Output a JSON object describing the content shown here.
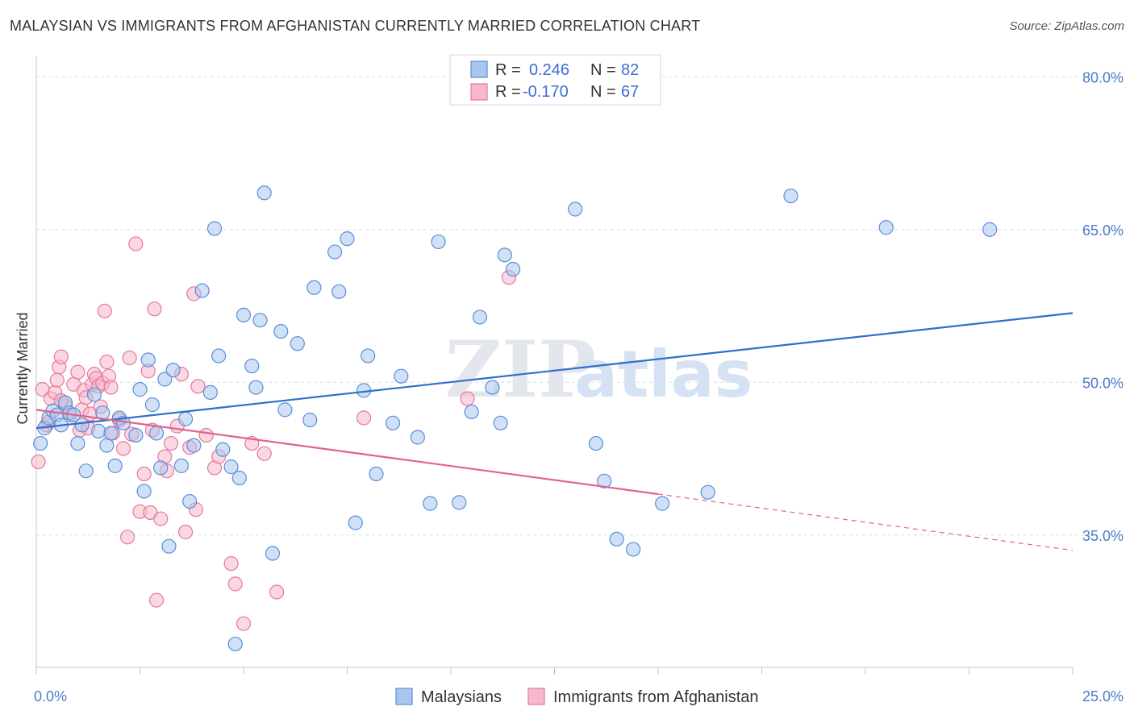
{
  "title": "MALAYSIAN VS IMMIGRANTS FROM AFGHANISTAN CURRENTLY MARRIED CORRELATION CHART",
  "source": "Source: ZipAtlas.com",
  "colors": {
    "blue_fill": "#a9c6ef",
    "blue_stroke": "#5b8ed8",
    "blue_line": "#2f6fcc",
    "pink_fill": "#f6b8cb",
    "pink_stroke": "#e8779c",
    "pink_line": "#e0628f",
    "grid": "#d8dde6",
    "tick_text": "#4a7cc9"
  },
  "chart_data": {
    "type": "scatter",
    "title": "MALAYSIAN VS IMMIGRANTS FROM AFGHANISTAN CURRENTLY MARRIED CORRELATION CHART",
    "xlabel": "",
    "ylabel": "Currently Married",
    "xlim": [
      0,
      25
    ],
    "ylim": [
      22,
      82
    ],
    "x_ticks": [
      "0.0%",
      "25.0%"
    ],
    "y_ticks": [
      {
        "value": 80,
        "label": "80.0%"
      },
      {
        "value": 65,
        "label": "65.0%"
      },
      {
        "value": 50,
        "label": "50.0%"
      },
      {
        "value": 35,
        "label": "35.0%"
      }
    ],
    "legend": [
      {
        "series": "Malaysians",
        "r_label": "R =",
        "r_value": "0.246",
        "n_label": "N =",
        "n_value": "82"
      },
      {
        "series": "Immigrants from Afghanistan",
        "r_label": "R =",
        "r_value": "-0.170",
        "n_label": "N =",
        "n_value": "67"
      }
    ],
    "watermark": {
      "zip": "ZIP",
      "atlas": "atlas"
    },
    "series": [
      {
        "name": "Malaysians",
        "color": "blue",
        "trend": {
          "x0": 0,
          "y0": 45.5,
          "x1": 25,
          "y1": 56.8,
          "dashed_from": null
        },
        "points": [
          [
            0.1,
            44.0
          ],
          [
            0.2,
            45.5
          ],
          [
            0.3,
            46.5
          ],
          [
            0.4,
            47.2
          ],
          [
            0.5,
            46.8
          ],
          [
            0.6,
            45.8
          ],
          [
            0.7,
            48.0
          ],
          [
            0.8,
            47.0
          ],
          [
            0.9,
            46.8
          ],
          [
            1.0,
            44.0
          ],
          [
            1.1,
            45.8
          ],
          [
            1.2,
            41.3
          ],
          [
            1.4,
            48.8
          ],
          [
            1.5,
            45.2
          ],
          [
            1.6,
            47.0
          ],
          [
            1.7,
            43.8
          ],
          [
            1.8,
            45.0
          ],
          [
            1.9,
            41.8
          ],
          [
            2.0,
            46.5
          ],
          [
            2.1,
            46.0
          ],
          [
            2.4,
            44.8
          ],
          [
            2.5,
            49.3
          ],
          [
            2.6,
            39.3
          ],
          [
            2.7,
            52.2
          ],
          [
            2.8,
            47.8
          ],
          [
            2.9,
            45.0
          ],
          [
            3.0,
            41.6
          ],
          [
            3.1,
            50.3
          ],
          [
            3.2,
            33.9
          ],
          [
            3.3,
            51.2
          ],
          [
            3.5,
            41.8
          ],
          [
            3.6,
            46.4
          ],
          [
            3.7,
            38.3
          ],
          [
            3.8,
            43.8
          ],
          [
            4.0,
            59.0
          ],
          [
            4.2,
            49.0
          ],
          [
            4.3,
            65.1
          ],
          [
            4.4,
            52.6
          ],
          [
            4.5,
            43.4
          ],
          [
            4.7,
            41.7
          ],
          [
            4.9,
            40.6
          ],
          [
            5.0,
            56.6
          ],
          [
            5.2,
            51.6
          ],
          [
            5.3,
            49.5
          ],
          [
            5.4,
            56.1
          ],
          [
            5.5,
            68.6
          ],
          [
            5.7,
            33.2
          ],
          [
            5.9,
            55.0
          ],
          [
            6.0,
            47.3
          ],
          [
            6.3,
            53.8
          ],
          [
            6.6,
            46.3
          ],
          [
            6.7,
            59.3
          ],
          [
            7.2,
            62.8
          ],
          [
            7.3,
            58.9
          ],
          [
            7.5,
            64.1
          ],
          [
            7.7,
            36.2
          ],
          [
            7.9,
            49.2
          ],
          [
            8.0,
            52.6
          ],
          [
            8.2,
            41.0
          ],
          [
            8.6,
            46.0
          ],
          [
            8.8,
            50.6
          ],
          [
            9.2,
            44.6
          ],
          [
            9.5,
            38.1
          ],
          [
            9.7,
            63.8
          ],
          [
            10.2,
            38.2
          ],
          [
            10.5,
            47.1
          ],
          [
            10.7,
            56.4
          ],
          [
            11.0,
            49.5
          ],
          [
            11.2,
            46.0
          ],
          [
            11.3,
            62.5
          ],
          [
            11.5,
            61.1
          ],
          [
            13.0,
            67.0
          ],
          [
            13.5,
            44.0
          ],
          [
            13.7,
            40.3
          ],
          [
            14.0,
            34.6
          ],
          [
            14.4,
            33.6
          ],
          [
            15.1,
            38.1
          ],
          [
            16.2,
            39.2
          ],
          [
            18.2,
            68.3
          ],
          [
            20.5,
            65.2
          ],
          [
            23.0,
            65.0
          ],
          [
            4.8,
            24.3
          ]
        ]
      },
      {
        "name": "Immigrants from Afghanistan",
        "color": "pink",
        "trend": {
          "x0": 0,
          "y0": 47.3,
          "x1": 25,
          "y1": 33.5,
          "dashed_from": 15.0
        },
        "points": [
          [
            0.05,
            42.2
          ],
          [
            0.15,
            49.3
          ],
          [
            0.25,
            45.8
          ],
          [
            0.35,
            48.4
          ],
          [
            0.45,
            49.0
          ],
          [
            0.5,
            50.2
          ],
          [
            0.55,
            51.5
          ],
          [
            0.6,
            52.5
          ],
          [
            0.7,
            47.7
          ],
          [
            0.8,
            46.8
          ],
          [
            0.9,
            49.8
          ],
          [
            1.0,
            51.0
          ],
          [
            1.05,
            45.3
          ],
          [
            1.1,
            47.3
          ],
          [
            1.15,
            49.2
          ],
          [
            1.2,
            48.5
          ],
          [
            1.25,
            45.5
          ],
          [
            1.35,
            49.8
          ],
          [
            1.4,
            50.8
          ],
          [
            1.45,
            50.4
          ],
          [
            1.5,
            49.6
          ],
          [
            1.55,
            47.6
          ],
          [
            1.6,
            49.9
          ],
          [
            1.65,
            57.0
          ],
          [
            1.7,
            52.0
          ],
          [
            1.75,
            50.6
          ],
          [
            1.8,
            49.5
          ],
          [
            1.85,
            45.0
          ],
          [
            2.0,
            46.3
          ],
          [
            2.1,
            43.5
          ],
          [
            2.2,
            34.8
          ],
          [
            2.25,
            52.4
          ],
          [
            2.4,
            63.6
          ],
          [
            2.5,
            37.3
          ],
          [
            2.6,
            41.0
          ],
          [
            2.7,
            51.1
          ],
          [
            2.75,
            37.2
          ],
          [
            2.8,
            45.3
          ],
          [
            2.85,
            57.2
          ],
          [
            2.9,
            28.6
          ],
          [
            3.0,
            36.6
          ],
          [
            3.1,
            42.7
          ],
          [
            3.15,
            41.3
          ],
          [
            3.25,
            44.0
          ],
          [
            3.4,
            45.7
          ],
          [
            3.5,
            50.8
          ],
          [
            3.6,
            35.3
          ],
          [
            3.7,
            43.6
          ],
          [
            3.8,
            58.7
          ],
          [
            3.85,
            37.5
          ],
          [
            3.9,
            49.6
          ],
          [
            4.1,
            44.8
          ],
          [
            4.3,
            41.6
          ],
          [
            4.4,
            42.7
          ],
          [
            4.7,
            32.2
          ],
          [
            4.8,
            30.2
          ],
          [
            5.0,
            26.3
          ],
          [
            5.2,
            44.0
          ],
          [
            5.5,
            43.0
          ],
          [
            5.8,
            29.4
          ],
          [
            7.9,
            46.5
          ],
          [
            10.4,
            48.4
          ],
          [
            11.4,
            60.3
          ],
          [
            0.3,
            46.1
          ],
          [
            0.6,
            48.2
          ],
          [
            1.3,
            46.9
          ],
          [
            2.3,
            44.9
          ]
        ]
      }
    ]
  },
  "bottom_legend": [
    {
      "label": "Malaysians"
    },
    {
      "label": "Immigrants from Afghanistan"
    }
  ]
}
